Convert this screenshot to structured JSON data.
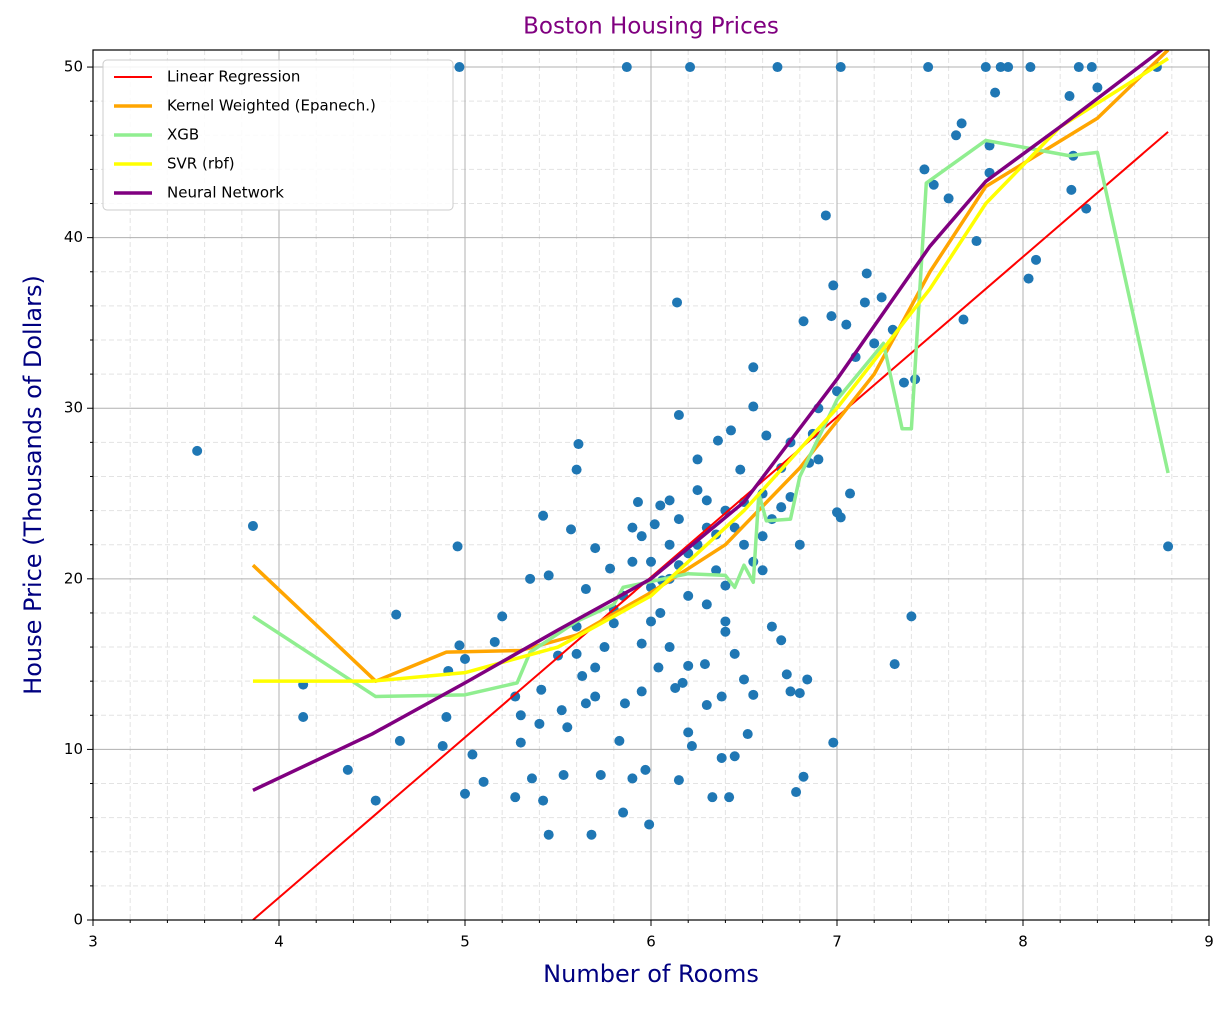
{
  "chart_data": {
    "type": "scatter",
    "title": "Boston Housing Prices",
    "xlabel": "Number of Rooms",
    "ylabel": "House Price (Thousands of Dollars)",
    "xlim": [
      3,
      9
    ],
    "ylim": [
      0,
      51
    ],
    "xticks": [
      3,
      4,
      5,
      6,
      7,
      8,
      9
    ],
    "yticks": [
      0,
      10,
      20,
      30,
      40,
      50
    ],
    "grid": true,
    "minor_grid": true,
    "legend": "upper left",
    "series": [
      {
        "kind": "scatter",
        "color": "#1f77b4",
        "x": [
          3.56,
          3.86,
          4.13,
          4.13,
          4.37,
          4.52,
          4.63,
          4.65,
          4.88,
          4.9,
          4.91,
          4.96,
          4.97,
          4.97,
          5.0,
          5.0,
          5.04,
          5.1,
          5.16,
          5.2,
          5.27,
          5.27,
          5.3,
          5.3,
          5.35,
          5.36,
          5.4,
          5.41,
          5.42,
          5.42,
          5.45,
          5.45,
          5.5,
          5.52,
          5.53,
          5.55,
          5.57,
          5.6,
          5.61,
          5.6,
          5.63,
          5.65,
          5.68,
          5.7,
          5.7,
          5.73,
          5.78,
          5.8,
          5.83,
          5.85,
          5.86,
          5.87,
          5.9,
          5.93,
          5.95,
          5.97,
          5.99,
          6.0,
          6.02,
          6.04,
          6.06,
          6.1,
          6.13,
          6.14,
          6.15,
          6.15,
          6.17,
          6.2,
          6.21,
          6.22,
          6.25,
          6.29,
          6.3,
          6.33,
          6.36,
          6.38,
          6.4,
          6.42,
          6.43,
          6.45,
          6.48,
          6.5,
          6.52,
          6.55,
          6.55,
          6.6,
          6.62,
          6.65,
          6.68,
          6.7,
          6.73,
          6.75,
          6.78,
          6.8,
          6.8,
          6.82,
          6.82,
          6.84,
          6.87,
          6.9,
          6.94,
          6.97,
          6.98,
          6.98,
          7.0,
          7.02,
          7.02,
          7.05,
          7.07,
          7.15,
          7.16,
          7.2,
          7.24,
          7.3,
          7.31,
          7.36,
          7.4,
          7.42,
          7.47,
          7.49,
          7.52,
          7.6,
          7.64,
          7.67,
          7.68,
          7.75,
          7.8,
          7.82,
          7.82,
          7.85,
          7.88,
          7.92,
          8.03,
          8.04,
          8.07,
          8.25,
          8.26,
          8.27,
          8.3,
          8.34,
          8.37,
          8.4,
          8.72,
          8.78,
          6.0,
          6.1,
          6.2,
          6.3,
          6.4,
          6.5,
          6.1,
          6.2,
          6.0,
          5.9,
          5.95,
          6.25,
          6.35,
          6.15,
          6.05,
          5.85,
          5.8,
          6.45,
          6.5,
          6.6,
          6.7,
          6.75,
          6.9,
          7.0,
          7.1,
          6.3,
          6.4,
          6.1,
          5.95,
          5.75,
          5.65,
          6.55,
          6.65,
          6.7,
          5.9,
          6.05,
          6.25,
          6.35,
          6.15,
          6.4,
          6.6,
          6.75,
          6.85,
          6.45,
          6.2,
          5.7,
          5.6,
          6.3,
          6.55,
          6.38
        ],
        "values": [
          27.5,
          23.1,
          13.8,
          11.9,
          8.8,
          7.0,
          17.9,
          10.5,
          10.2,
          11.9,
          14.6,
          21.9,
          50,
          16.1,
          7.4,
          15.3,
          9.7,
          8.1,
          16.3,
          17.8,
          13.1,
          7.2,
          12,
          10.4,
          20,
          8.3,
          11.5,
          13.5,
          23.7,
          7.0,
          5.0,
          20.2,
          15.5,
          12.3,
          8.5,
          11.3,
          22.9,
          26.4,
          27.9,
          15.6,
          14.3,
          12.7,
          5.0,
          13.1,
          21.8,
          8.5,
          20.6,
          17.4,
          10.5,
          6.3,
          12.7,
          50,
          8.3,
          24.5,
          13.4,
          8.8,
          5.6,
          17.5,
          23.2,
          14.8,
          19.9,
          24.6,
          13.6,
          36.2,
          29.6,
          8.2,
          13.9,
          11.0,
          50,
          10.2,
          27.0,
          15.0,
          24.6,
          7.2,
          28.1,
          9.5,
          16.9,
          7.2,
          28.7,
          9.6,
          26.4,
          14.1,
          10.9,
          30.1,
          32.4,
          22.5,
          28.4,
          17.2,
          50,
          16.4,
          14.4,
          13.4,
          7.5,
          13.3,
          22.0,
          8.4,
          35.1,
          14.1,
          28.5,
          27,
          41.3,
          35.4,
          37.2,
          10.4,
          23.9,
          23.6,
          50,
          34.9,
          25.0,
          36.2,
          37.9,
          33.8,
          36.5,
          34.6,
          15.0,
          31.5,
          17.8,
          31.7,
          44,
          50,
          43.1,
          42.3,
          46,
          46.7,
          35.2,
          39.8,
          50,
          45.4,
          43.8,
          48.5,
          50,
          50,
          37.6,
          50,
          38.7,
          48.3,
          42.8,
          44.8,
          50,
          41.7,
          50,
          48.8,
          50,
          21.9,
          21,
          22,
          21.5,
          23,
          24,
          24.5,
          20,
          19,
          19.5,
          21,
          22.5,
          22,
          20.5,
          23.5,
          18,
          19,
          18.2,
          23,
          22,
          25,
          26.5,
          28,
          30,
          31,
          33,
          18.5,
          17.5,
          16,
          16.2,
          16,
          19.4,
          21,
          23.5,
          24.2,
          23,
          24.3,
          25.2,
          22.6,
          20.8,
          19.6,
          20.5,
          24.8,
          26.8,
          15.6,
          14.9,
          14.8,
          17.2,
          12.6,
          13.2,
          13.1
        ]
      },
      {
        "kind": "line",
        "name": "Linear Regression",
        "color": "#ff0000",
        "width": 2,
        "x": [
          3.86,
          8.78
        ],
        "values": [
          0,
          46.2
        ]
      },
      {
        "kind": "line",
        "name": "Kernel Weighted (Epanech.)",
        "color": "#ffa500",
        "width": 3.5,
        "x": [
          3.86,
          4.52,
          4.9,
          5.3,
          5.6,
          6.0,
          6.4,
          6.8,
          7.2,
          7.5,
          7.8,
          8.1,
          8.4,
          8.78
        ],
        "values": [
          20.8,
          14.0,
          15.7,
          15.8,
          16.7,
          19.2,
          22.0,
          26.5,
          32,
          38,
          43,
          45,
          47,
          51
        ]
      },
      {
        "kind": "line",
        "name": "XGB",
        "color": "#90ee90",
        "width": 3.5,
        "x": [
          3.86,
          4.52,
          5.0,
          5.28,
          5.35,
          5.6,
          5.8,
          5.85,
          6.2,
          6.4,
          6.45,
          6.5,
          6.55,
          6.58,
          6.62,
          6.75,
          6.8,
          7.0,
          7.25,
          7.35,
          7.4,
          7.48,
          7.8,
          8.25,
          8.4,
          8.78
        ],
        "values": [
          17.8,
          13.1,
          13.2,
          13.9,
          15.7,
          17.5,
          18.5,
          19.5,
          20.3,
          20.2,
          19.5,
          20.8,
          19.8,
          25,
          23.4,
          23.5,
          26,
          30.5,
          33.8,
          28.8,
          28.8,
          43.2,
          45.7,
          44.8,
          45,
          26.2
        ]
      },
      {
        "kind": "line",
        "name": "SVR (rbf)",
        "color": "#ffff00",
        "width": 3.5,
        "x": [
          3.86,
          4.5,
          5.0,
          5.5,
          6.0,
          6.5,
          7.0,
          7.5,
          7.8,
          8.2,
          8.78
        ],
        "values": [
          14,
          14,
          14.5,
          16,
          19,
          24,
          30,
          37,
          42,
          46.5,
          50.5
        ]
      },
      {
        "kind": "line",
        "name": "Neural Network",
        "color": "#800080",
        "width": 3.5,
        "x": [
          3.86,
          4.5,
          5.0,
          5.5,
          6.0,
          6.5,
          7.0,
          7.5,
          7.8,
          8.2,
          8.78
        ],
        "values": [
          7.6,
          10.9,
          13.9,
          17,
          20,
          24.5,
          31.7,
          39.5,
          43.3,
          46.5,
          51.3
        ]
      }
    ]
  }
}
